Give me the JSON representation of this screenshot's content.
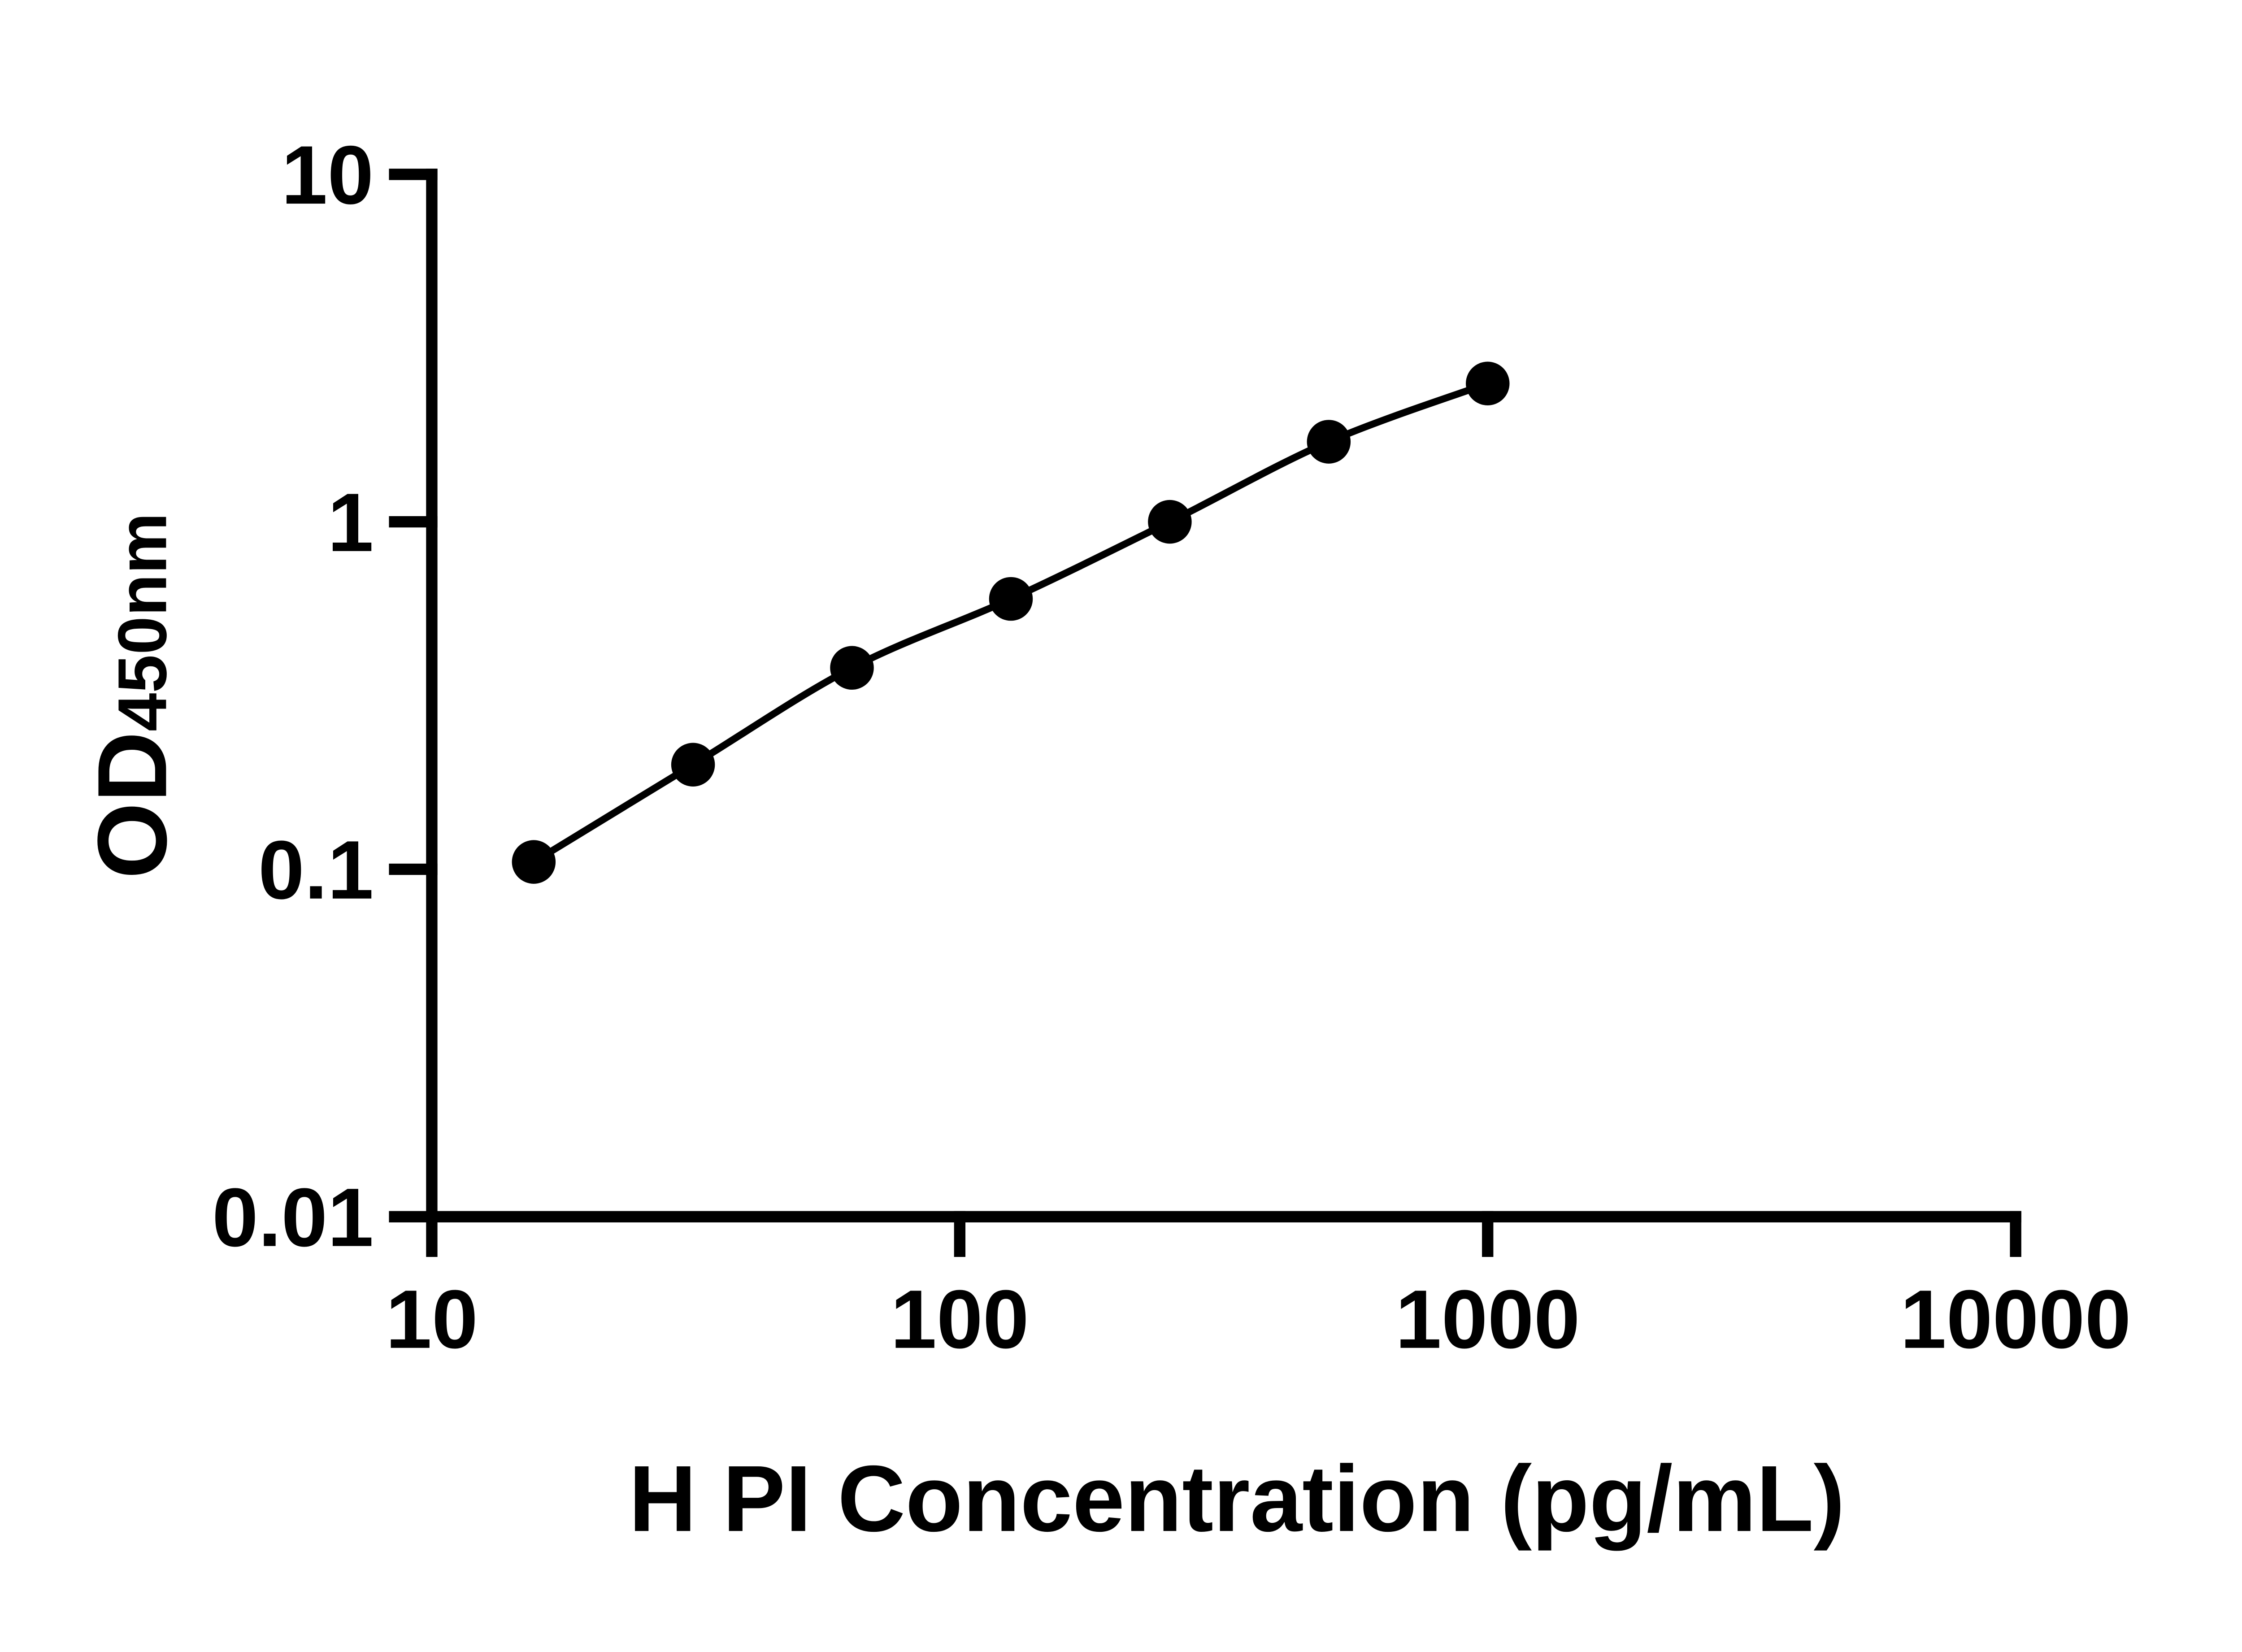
{
  "figure": {
    "background_color": "#ffffff"
  },
  "chart_data": {
    "type": "line",
    "title": "",
    "xlabel": "H PI Concentration (pg/mL)",
    "ylabel_main": "OD",
    "ylabel_sub": "450nm",
    "x_scale": "log",
    "y_scale": "log",
    "xlim": [
      10,
      10000
    ],
    "ylim": [
      0.01,
      10
    ],
    "x": [
      15.6,
      31.25,
      62.5,
      125,
      250,
      500,
      1000
    ],
    "y": [
      0.105,
      0.2,
      0.38,
      0.6,
      1.0,
      1.7,
      2.5
    ],
    "x_tick_values": [
      10,
      100,
      1000,
      10000
    ],
    "x_tick_labels": [
      "10",
      "100",
      "1000",
      "10000"
    ],
    "y_tick_values": [
      10,
      1,
      0.1,
      0.01
    ],
    "y_tick_labels": [
      "10",
      "1",
      "0.1",
      "0.01"
    ],
    "grid": false,
    "legend": "none",
    "marker_shape": "filled-circle",
    "marker_color": "#000000",
    "line_color": "#000000",
    "axis_color": "#000000",
    "text_color": "#000000"
  }
}
